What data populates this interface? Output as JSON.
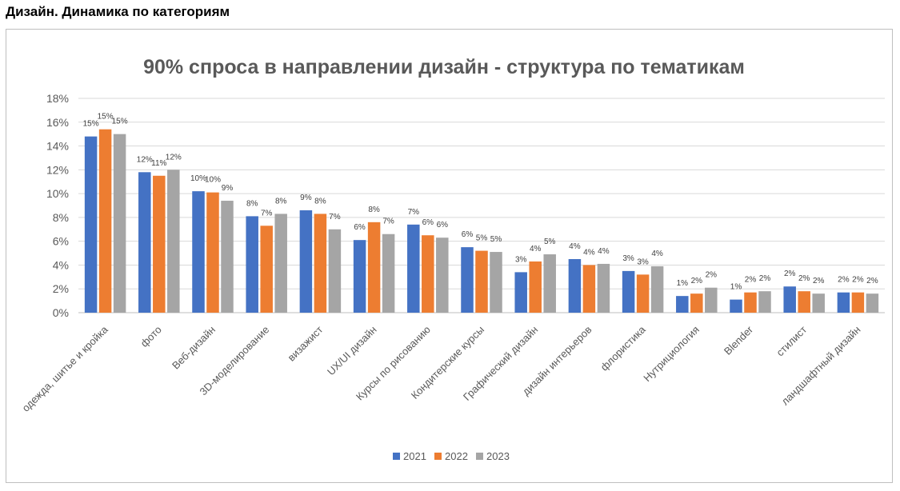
{
  "page": {
    "heading": "Дизайн. Динамика по категориям"
  },
  "chart_data": {
    "type": "bar",
    "title": "90% спроса в направлении дизайн - структура по тематикам",
    "xlabel": "",
    "ylabel": "",
    "ylim": [
      0,
      18
    ],
    "y_ticks": [
      "0%",
      "2%",
      "4%",
      "6%",
      "8%",
      "10%",
      "12%",
      "14%",
      "16%",
      "18%"
    ],
    "grid": true,
    "legend_position": "bottom",
    "categories": [
      "одежда, шитье и кройка",
      "фото",
      "Веб-дизайн",
      "3D-моделирование",
      "визажист",
      "UX/UI дизайн",
      "Курсы по рисованию",
      "Кондитерские курсы",
      "Графический дизайн",
      "дизайн интерьеров",
      "флористика",
      "Нутрициология",
      "Blender",
      "стилист",
      "ландшафтный дизайн"
    ],
    "series": [
      {
        "name": "2021",
        "color": "#4472c4",
        "values": [
          14.8,
          11.8,
          10.2,
          8.1,
          8.6,
          6.1,
          7.4,
          5.5,
          3.4,
          4.5,
          3.5,
          1.4,
          1.1,
          2.2,
          1.7
        ],
        "labels": [
          "15%",
          "12%",
          "10%",
          "8%",
          "9%",
          "6%",
          "7%",
          "6%",
          "3%",
          "4%",
          "3%",
          "1%",
          "1%",
          "2%",
          "2%"
        ]
      },
      {
        "name": "2022",
        "color": "#ed7d31",
        "values": [
          15.4,
          11.5,
          10.1,
          7.3,
          8.3,
          7.6,
          6.5,
          5.2,
          4.3,
          4.0,
          3.2,
          1.6,
          1.7,
          1.8,
          1.7
        ],
        "labels": [
          "15%",
          "11%",
          "10%",
          "7%",
          "8%",
          "8%",
          "6%",
          "5%",
          "4%",
          "4%",
          "3%",
          "2%",
          "2%",
          "2%",
          "2%"
        ]
      },
      {
        "name": "2023",
        "color": "#a5a5a5",
        "values": [
          15.0,
          12.0,
          9.4,
          8.3,
          7.0,
          6.6,
          6.3,
          5.1,
          4.9,
          4.1,
          3.9,
          2.1,
          1.8,
          1.6,
          1.6
        ],
        "labels": [
          "15%",
          "12%",
          "9%",
          "8%",
          "7%",
          "7%",
          "6%",
          "5%",
          "5%",
          "4%",
          "4%",
          "2%",
          "2%",
          "2%",
          "2%"
        ]
      }
    ]
  }
}
